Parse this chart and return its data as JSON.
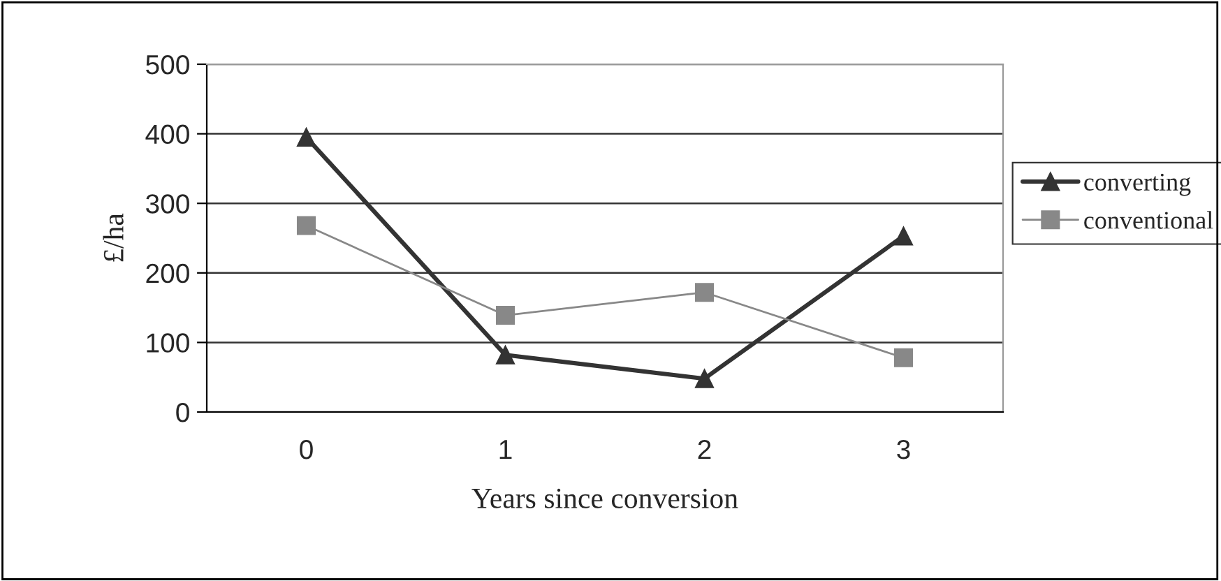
{
  "chart_data": {
    "type": "line",
    "xlabel": "Years since conversion",
    "ylabel": "£/ha",
    "categories": [
      "0",
      "1",
      "2",
      "3"
    ],
    "series": [
      {
        "name": "converting",
        "color": "#333333",
        "values": [
          395,
          82,
          48,
          253
        ],
        "marker": "triangle"
      },
      {
        "name": "conventional",
        "color": "#888888",
        "values": [
          268,
          139,
          172,
          78
        ],
        "marker": "square"
      }
    ],
    "ylim": [
      0,
      500
    ],
    "yticks": [
      0,
      100,
      200,
      300,
      400,
      500
    ],
    "grid": "y",
    "legend": "right",
    "line_style": "solid"
  }
}
